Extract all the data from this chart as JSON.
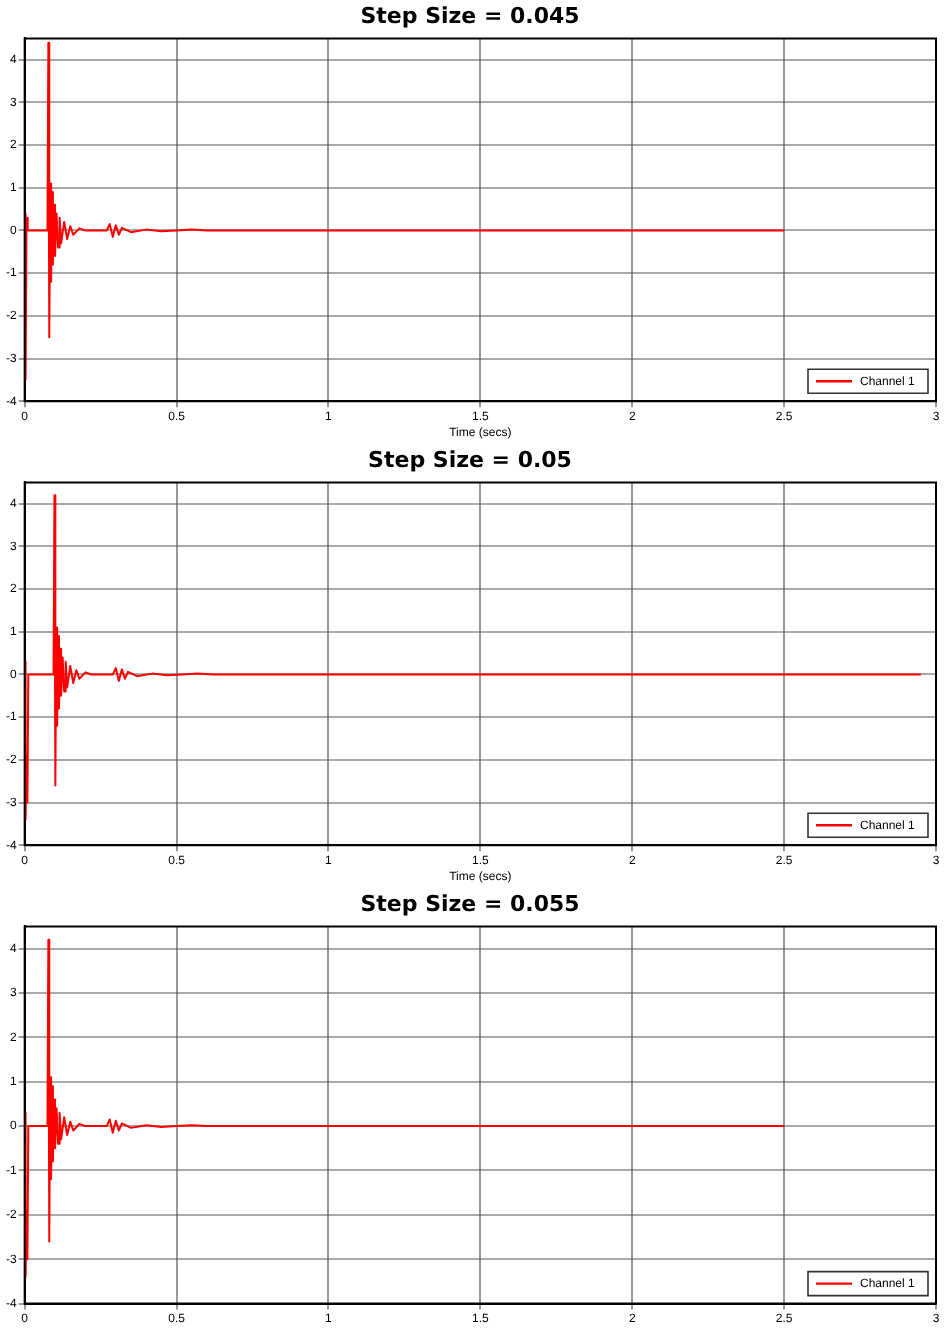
{
  "chart_data": [
    {
      "type": "line",
      "title": "Step Size = 0.045",
      "xlabel": "Time (secs)",
      "xlim": [
        0,
        3
      ],
      "ylim": [
        -4,
        4.5
      ],
      "xticks": [
        0,
        0.5,
        1,
        1.5,
        2,
        2.5,
        3
      ],
      "yticks": [
        -4,
        -3,
        -2,
        -1,
        0,
        1,
        2,
        3,
        4
      ],
      "grid": true,
      "legend": "bottom right",
      "marker": "none",
      "series": [
        {
          "name": "Channel 1",
          "color": "#ff0000",
          "x": [
            0,
            0.003,
            0.006,
            0.01,
            0.04,
            0.075,
            0.078,
            0.081,
            0.084,
            0.087,
            0.09,
            0.093,
            0.097,
            0.1,
            0.105,
            0.11,
            0.115,
            0.12,
            0.13,
            0.14,
            0.15,
            0.16,
            0.18,
            0.2,
            0.27,
            0.28,
            0.29,
            0.3,
            0.31,
            0.32,
            0.35,
            0.4,
            0.45,
            0.5,
            0.55,
            0.6,
            2.5
          ],
          "values": [
            0.4,
            -3.5,
            0.3,
            0,
            0,
            0,
            4.4,
            -2.5,
            1.1,
            -1.2,
            0.9,
            -0.8,
            0.6,
            -0.6,
            0.4,
            -0.4,
            0.3,
            -0.3,
            0.2,
            -0.2,
            0.1,
            -0.1,
            0.05,
            0,
            0,
            0.15,
            -0.15,
            0.12,
            -0.1,
            0.06,
            -0.04,
            0.02,
            -0.02,
            0,
            0.02,
            0,
            0
          ]
        }
      ]
    },
    {
      "type": "line",
      "title": "Step Size = 0.05",
      "xlabel": "Time (secs)",
      "xlim": [
        0,
        3
      ],
      "ylim": [
        -4,
        4.5
      ],
      "xticks": [
        0,
        0.5,
        1,
        1.5,
        2,
        2.5,
        3
      ],
      "yticks": [
        -4,
        -3,
        -2,
        -1,
        0,
        1,
        2,
        3,
        4
      ],
      "grid": true,
      "legend": "bottom right",
      "marker": "none",
      "series": [
        {
          "name": "Channel 1",
          "color": "#ff0000",
          "x": [
            0,
            0.003,
            0.006,
            0.009,
            0.012,
            0.04,
            0.095,
            0.098,
            0.101,
            0.104,
            0.107,
            0.11,
            0.113,
            0.117,
            0.12,
            0.125,
            0.13,
            0.135,
            0.14,
            0.15,
            0.16,
            0.17,
            0.18,
            0.2,
            0.22,
            0.29,
            0.3,
            0.31,
            0.32,
            0.33,
            0.34,
            0.37,
            0.42,
            0.47,
            0.52,
            0.57,
            0.62,
            2.95
          ],
          "values": [
            0.3,
            -3.4,
            -1.9,
            -3.0,
            0,
            0,
            0,
            4.2,
            -2.6,
            1.1,
            -1.2,
            0.9,
            -0.8,
            0.6,
            -0.5,
            0.4,
            -0.4,
            0.3,
            -0.3,
            0.2,
            -0.2,
            0.1,
            -0.1,
            0.05,
            0,
            0,
            0.15,
            -0.15,
            0.12,
            -0.1,
            0.06,
            -0.04,
            0.02,
            -0.02,
            0,
            0.02,
            0,
            0
          ]
        }
      ]
    },
    {
      "type": "line",
      "title": "Step Size = 0.055",
      "xlim": [
        0,
        3
      ],
      "ylim": [
        -4,
        4.5
      ],
      "xticks": [
        0,
        0.5,
        1,
        1.5,
        2,
        2.5,
        3
      ],
      "yticks": [
        -4,
        -3,
        -2,
        -1,
        0,
        1,
        2,
        3,
        4
      ],
      "grid": true,
      "legend": "bottom right",
      "marker": "none",
      "series": [
        {
          "name": "Channel 1",
          "color": "#ff0000",
          "x": [
            0,
            0.003,
            0.006,
            0.009,
            0.012,
            0.04,
            0.075,
            0.078,
            0.081,
            0.084,
            0.087,
            0.09,
            0.093,
            0.097,
            0.1,
            0.105,
            0.11,
            0.115,
            0.12,
            0.13,
            0.14,
            0.15,
            0.16,
            0.18,
            0.2,
            0.27,
            0.28,
            0.29,
            0.3,
            0.31,
            0.32,
            0.35,
            0.4,
            0.45,
            0.5,
            0.55,
            0.6,
            2.5
          ],
          "values": [
            0.3,
            -3.4,
            -1.9,
            -3.0,
            0,
            0,
            0,
            4.2,
            -2.6,
            1.1,
            -1.2,
            0.9,
            -0.8,
            0.6,
            -0.5,
            0.4,
            -0.4,
            0.3,
            -0.3,
            0.2,
            -0.2,
            0.1,
            -0.1,
            0.05,
            0,
            0,
            0.15,
            -0.15,
            0.12,
            -0.1,
            0.06,
            -0.04,
            0.02,
            -0.02,
            0,
            0.02,
            0,
            0
          ]
        }
      ]
    }
  ]
}
